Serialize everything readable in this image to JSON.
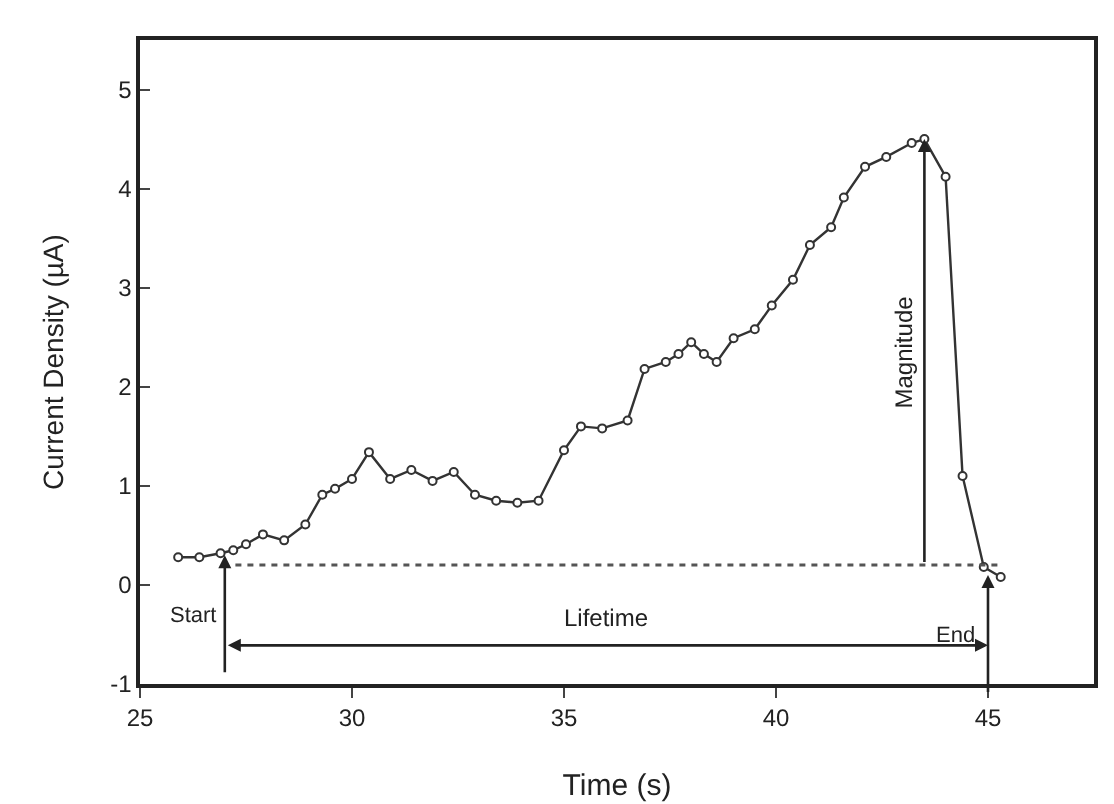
{
  "chart_data": {
    "type": "line",
    "xlabel": "Time (s)",
    "ylabel": "Current Density (µA)",
    "x": [
      25.9,
      26.4,
      26.9,
      27.2,
      27.5,
      27.9,
      28.4,
      28.9,
      29.3,
      29.6,
      30.0,
      30.4,
      30.9,
      31.4,
      31.9,
      32.4,
      32.9,
      33.4,
      33.9,
      34.4,
      35.0,
      35.4,
      35.9,
      36.5,
      36.9,
      37.4,
      37.7,
      38.0,
      38.3,
      38.6,
      39.0,
      39.5,
      39.9,
      40.4,
      40.8,
      41.3,
      41.6,
      42.1,
      42.6,
      43.2,
      43.5,
      44.0,
      44.4,
      44.9,
      45.3
    ],
    "series": [
      {
        "color": "#333333",
        "values": [
          0.28,
          0.28,
          0.32,
          0.35,
          0.41,
          0.51,
          0.45,
          0.61,
          0.91,
          0.97,
          1.07,
          1.34,
          1.07,
          1.16,
          1.05,
          1.14,
          0.91,
          0.85,
          0.83,
          0.85,
          1.36,
          1.6,
          1.58,
          1.66,
          2.18,
          2.25,
          2.33,
          2.45,
          2.33,
          2.25,
          2.49,
          2.58,
          2.82,
          3.08,
          3.43,
          3.61,
          3.91,
          4.22,
          4.32,
          4.46,
          4.5,
          4.12,
          1.1,
          0.18,
          0.08
        ]
      }
    ],
    "xlim": [
      25,
      47.5
    ],
    "ylim": [
      -1,
      5.5
    ],
    "xticks": [
      25,
      30,
      35,
      40,
      45
    ],
    "yticks": [
      -1,
      0,
      1,
      2,
      3,
      4,
      5
    ],
    "marker": "circle",
    "line_style": "solid",
    "grid": false,
    "legend": false,
    "ref_lines": [
      {
        "axis": "y",
        "value": 0.2,
        "line_style": "dotted",
        "color": "#555555"
      }
    ],
    "annotations": [
      {
        "text": "Start",
        "x": 27,
        "y": 0.3
      },
      "Lifetime",
      {
        "text": "End",
        "x": 45,
        "y": 0.1
      },
      "Magnitude"
    ]
  }
}
